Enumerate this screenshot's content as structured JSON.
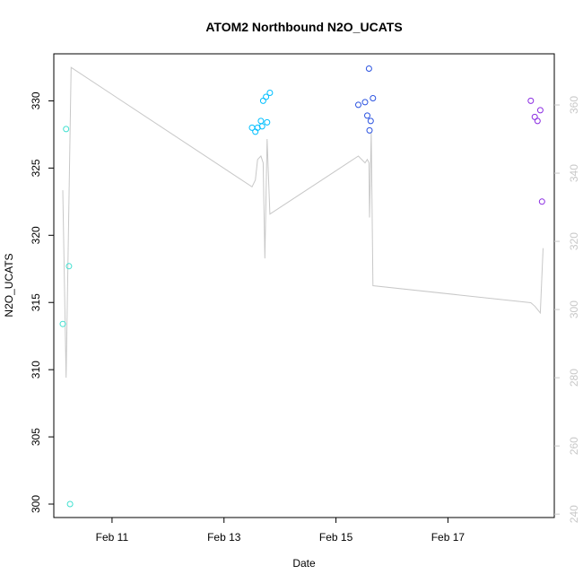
{
  "chart_data": {
    "type": "scatter",
    "title": "ATOM2 Northbound N2O_UCATS",
    "xlabel": "Date",
    "ylabel": "N2O_UCATS",
    "x_range_days": [
      9.96,
      18.9
    ],
    "ylim": [
      299.0,
      333.5
    ],
    "y_ticks": [
      300,
      305,
      310,
      315,
      320,
      325,
      330
    ],
    "x_ticks": [
      {
        "value": 11,
        "label": "Feb 11"
      },
      {
        "value": 13,
        "label": "Feb 13"
      },
      {
        "value": 15,
        "label": "Feb 15"
      },
      {
        "value": 17,
        "label": "Feb 17"
      }
    ],
    "right_axis": {
      "ylim": [
        239.0,
        375.0
      ],
      "ticks": [
        240,
        260,
        280,
        300,
        320,
        340,
        360
      ],
      "color": "#c8c8c8"
    },
    "points": [
      {
        "x": 10.12,
        "y": 313.4,
        "color": "#40e0d0"
      },
      {
        "x": 10.18,
        "y": 327.9,
        "color": "#40e0d0"
      },
      {
        "x": 10.23,
        "y": 317.7,
        "color": "#40e0d0"
      },
      {
        "x": 10.25,
        "y": 300.0,
        "color": "#40e0d0"
      },
      {
        "x": 13.5,
        "y": 328.0,
        "color": "#00bfff"
      },
      {
        "x": 13.56,
        "y": 327.7,
        "color": "#00bfff"
      },
      {
        "x": 13.6,
        "y": 328.0,
        "color": "#00bfff"
      },
      {
        "x": 13.66,
        "y": 328.5,
        "color": "#00bfff"
      },
      {
        "x": 13.68,
        "y": 328.1,
        "color": "#00bfff"
      },
      {
        "x": 13.7,
        "y": 330.0,
        "color": "#00bfff"
      },
      {
        "x": 13.75,
        "y": 330.3,
        "color": "#00bfff"
      },
      {
        "x": 13.77,
        "y": 328.4,
        "color": "#00bfff"
      },
      {
        "x": 13.82,
        "y": 330.6,
        "color": "#00bfff"
      },
      {
        "x": 15.4,
        "y": 329.7,
        "color": "#2a52e0"
      },
      {
        "x": 15.52,
        "y": 329.9,
        "color": "#2a52e0"
      },
      {
        "x": 15.56,
        "y": 328.9,
        "color": "#2a52e0"
      },
      {
        "x": 15.59,
        "y": 332.4,
        "color": "#2a52e0"
      },
      {
        "x": 15.6,
        "y": 327.8,
        "color": "#2a52e0"
      },
      {
        "x": 15.62,
        "y": 328.5,
        "color": "#2a52e0"
      },
      {
        "x": 15.66,
        "y": 330.2,
        "color": "#2a52e0"
      },
      {
        "x": 18.48,
        "y": 330.0,
        "color": "#8a2be2"
      },
      {
        "x": 18.55,
        "y": 328.8,
        "color": "#8a2be2"
      },
      {
        "x": 18.6,
        "y": 328.5,
        "color": "#8a2be2"
      },
      {
        "x": 18.65,
        "y": 329.3,
        "color": "#8a2be2"
      },
      {
        "x": 18.68,
        "y": 322.5,
        "color": "#8a2be2"
      }
    ],
    "line_series": {
      "axis": "right",
      "color": "#c8c8c8",
      "points": [
        [
          10.12,
          335
        ],
        [
          10.18,
          280
        ],
        [
          10.27,
          371
        ],
        [
          13.5,
          336
        ],
        [
          13.56,
          338
        ],
        [
          13.6,
          344
        ],
        [
          13.66,
          345
        ],
        [
          13.7,
          343
        ],
        [
          13.73,
          315
        ],
        [
          13.77,
          350
        ],
        [
          13.82,
          328
        ],
        [
          15.4,
          345
        ],
        [
          15.52,
          343
        ],
        [
          15.56,
          344
        ],
        [
          15.59,
          343
        ],
        [
          15.6,
          327
        ],
        [
          15.63,
          352
        ],
        [
          15.66,
          307
        ],
        [
          18.48,
          302
        ],
        [
          18.55,
          301
        ],
        [
          18.6,
          300
        ],
        [
          18.65,
          299
        ],
        [
          18.7,
          318
        ]
      ]
    }
  }
}
